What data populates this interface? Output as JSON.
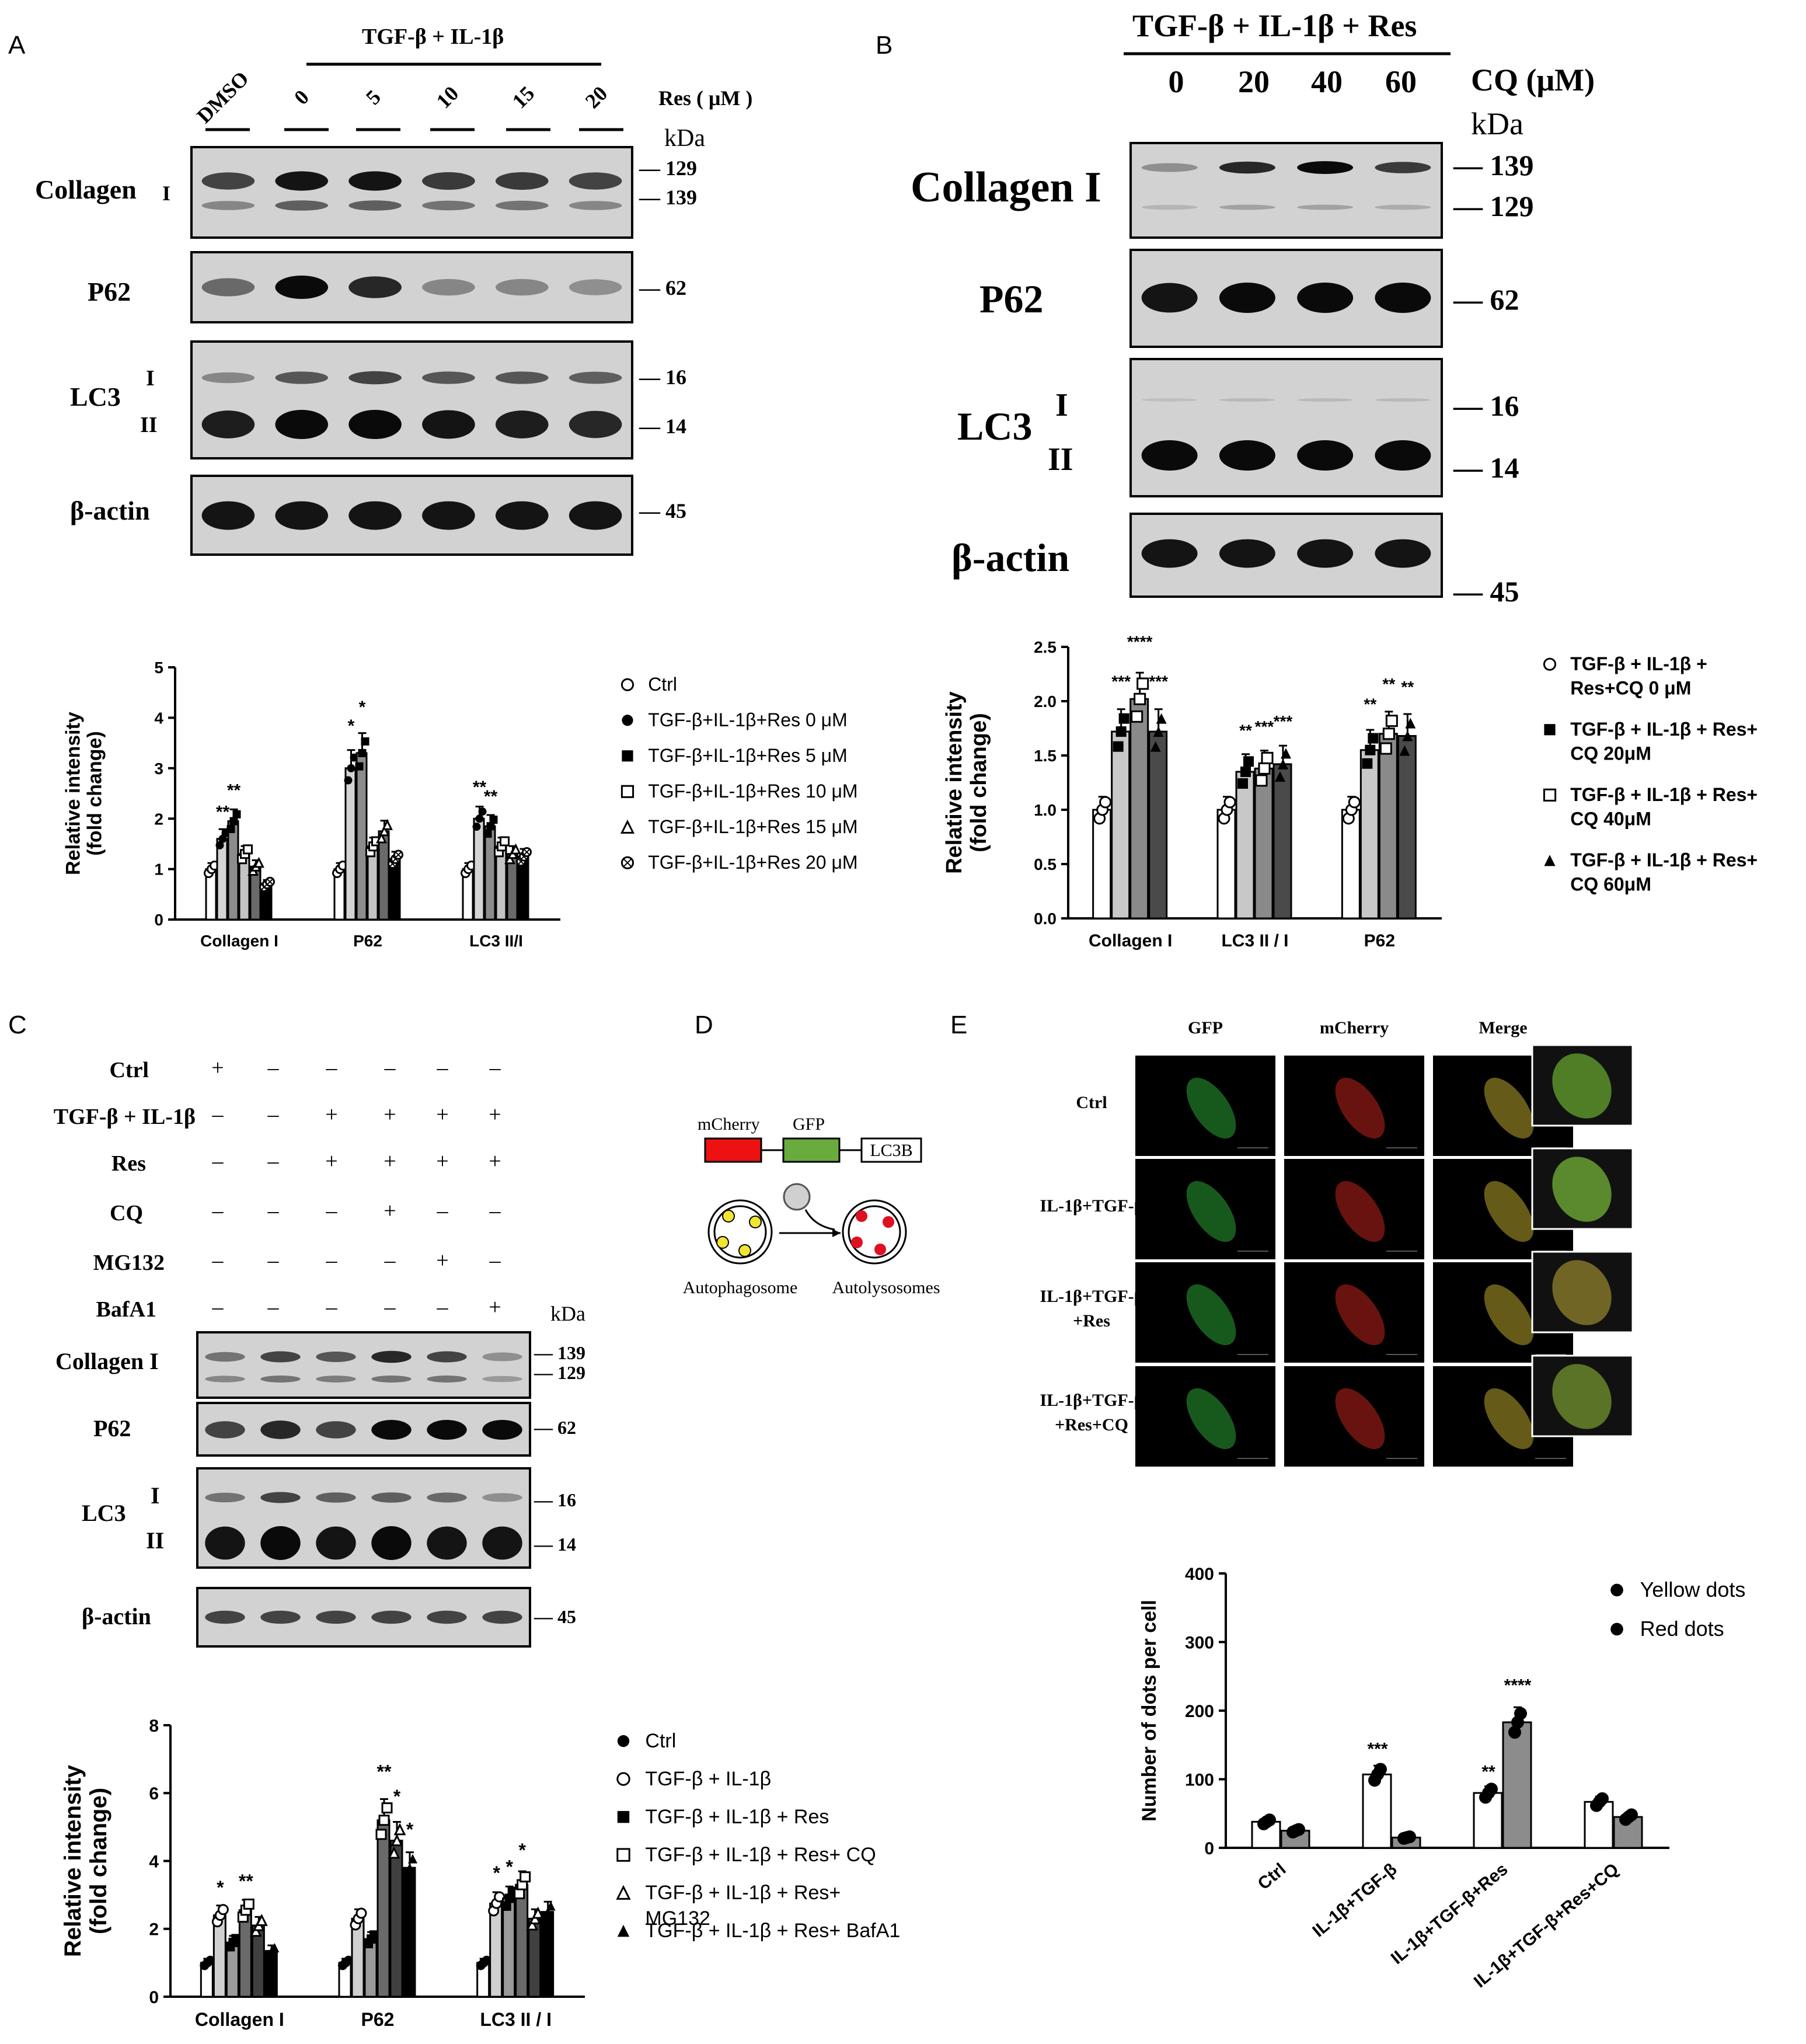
{
  "panelA": {
    "letter": "A",
    "header_treatment": "TGF-β + IL-1β",
    "lanes": [
      "DMSO",
      "0",
      "5",
      "10",
      "15",
      "20"
    ],
    "res_label": "Res ( μM )",
    "kda_label": "kDa",
    "blots": [
      {
        "label": "Collagen",
        "sublabel": "I",
        "markers": [
          "— 129",
          "— 139"
        ]
      },
      {
        "label": "P62",
        "markers": [
          "— 62"
        ]
      },
      {
        "label": "LC3",
        "sublabels": [
          "I",
          "II"
        ],
        "markers": [
          "— 16",
          "— 14"
        ]
      },
      {
        "label": "β-actin",
        "markers": [
          "— 45"
        ]
      }
    ]
  },
  "panelB": {
    "letter": "B",
    "header_treatment": "TGF-β + IL-1β + Res",
    "lanes": [
      "0",
      "20",
      "40",
      "60"
    ],
    "cq_label": "CQ (μM)",
    "kda_label": "kDa",
    "blots": [
      {
        "label": "Collagen I",
        "markers": [
          "— 139",
          "— 129"
        ]
      },
      {
        "label": "P62",
        "markers": [
          "— 62"
        ]
      },
      {
        "label": "LC3",
        "sublabels": [
          "I",
          "II"
        ],
        "markers": [
          "— 16",
          "— 14"
        ]
      },
      {
        "label": "β-actin",
        "markers": [
          "— 45"
        ]
      }
    ]
  },
  "panelC": {
    "letter": "C",
    "rows": [
      {
        "label": "Ctrl",
        "signs": [
          "+",
          "–",
          "–",
          "–",
          "–",
          "–"
        ]
      },
      {
        "label": "TGF-β + IL-1β",
        "signs": [
          "–",
          "–",
          "+",
          "+",
          "+",
          "+"
        ]
      },
      {
        "label": "Res",
        "signs": [
          "–",
          "–",
          "+",
          "+",
          "+",
          "+"
        ]
      },
      {
        "label": "CQ",
        "signs": [
          "–",
          "–",
          "–",
          "+",
          "–",
          "–"
        ]
      },
      {
        "label": "MG132",
        "signs": [
          "–",
          "–",
          "–",
          "–",
          "+",
          "–"
        ]
      },
      {
        "label": "BafA1",
        "signs": [
          "–",
          "–",
          "–",
          "–",
          "–",
          "+"
        ]
      }
    ],
    "kda_label": "kDa",
    "blots": [
      {
        "label": "Collagen I",
        "markers": [
          "— 139",
          "— 129"
        ]
      },
      {
        "label": "P62",
        "markers": [
          "— 62"
        ]
      },
      {
        "label": "LC3",
        "sublabels": [
          "I",
          "II"
        ],
        "markers": [
          "— 16",
          "— 14"
        ]
      },
      {
        "label": "β-actin",
        "markers": [
          "— 45"
        ]
      }
    ]
  },
  "panelD": {
    "letter": "D",
    "construct": [
      "mCherry",
      "GFP",
      "LC3B"
    ],
    "left_label": "Autophagosome",
    "right_label": "Autolysosomes",
    "colors": {
      "mcherry": "#ee1111",
      "gfp": "#6aab3e",
      "yellow": "#f0e632",
      "red": "#e01020"
    }
  },
  "panelE": {
    "letter": "E",
    "columns": [
      "GFP",
      "mCherry",
      "Merge"
    ],
    "rows": [
      "Ctrl",
      "IL-1β+TGF-β",
      "IL-1β+TGF-β\n+Res",
      "IL-1β+TGF-β\n+Res+CQ"
    ]
  },
  "chart_data": [
    {
      "id": "A",
      "type": "bar",
      "ylabel": "Relative intensity\n(fold change)",
      "ylim": [
        0,
        5
      ],
      "yticks": [
        0,
        1,
        2,
        3,
        4,
        5
      ],
      "categories": [
        "Collagen I",
        "P62",
        "LC3 II/I"
      ],
      "series": [
        {
          "name": "Ctrl",
          "marker": "circle-open",
          "fill": "#ffffff",
          "values": [
            1.0,
            1.0,
            1.0
          ]
        },
        {
          "name": "TGF-β+IL-1β+Res 0 μM",
          "marker": "circle",
          "fill": "#d4d4d4",
          "values": [
            1.6,
            3.0,
            2.0
          ]
        },
        {
          "name": "TGF-β+IL-1β+Res 5 μM",
          "marker": "square",
          "fill": "#8c8c8c",
          "values": [
            1.95,
            3.3,
            1.85
          ]
        },
        {
          "name": "TGF-β+IL-1β+Res 10 μM",
          "marker": "square-open",
          "fill": "#c4c4c4",
          "values": [
            1.3,
            1.45,
            1.45
          ]
        },
        {
          "name": "TGF-β+IL-1β+Res 15 μM",
          "marker": "triangle-open",
          "fill": "#6a6a6a",
          "values": [
            1.05,
            1.75,
            1.3
          ]
        },
        {
          "name": "TGF-β+IL-1β+Res 20 μM",
          "marker": "circle-x",
          "fill": "#000000",
          "values": [
            0.7,
            1.2,
            1.25
          ]
        }
      ],
      "significance": [
        {
          "category": "Collagen I",
          "series": 1,
          "label": "**"
        },
        {
          "category": "Collagen I",
          "series": 2,
          "label": "**"
        },
        {
          "category": "P62",
          "series": 1,
          "label": "*"
        },
        {
          "category": "P62",
          "series": 2,
          "label": "*"
        },
        {
          "category": "LC3 II/I",
          "series": 1,
          "label": "**"
        },
        {
          "category": "LC3 II/I",
          "series": 2,
          "label": "**"
        }
      ]
    },
    {
      "id": "B",
      "type": "bar",
      "ylabel": "Relative intensity\n(fold change)",
      "ylim": [
        0,
        2.5
      ],
      "yticks": [
        0.0,
        0.5,
        1.0,
        1.5,
        2.0,
        2.5
      ],
      "categories": [
        "Collagen I",
        "LC3 II / I",
        "P62"
      ],
      "series": [
        {
          "name": "TGF-β + IL-1β +\nRes+CQ 0 μM",
          "marker": "circle-open",
          "fill": "#ffffff",
          "values": [
            1.0,
            1.0,
            1.0
          ]
        },
        {
          "name": "TGF-β + IL-1β + Res+\nCQ 20μM",
          "marker": "square",
          "fill": "#c8c8c8",
          "values": [
            1.72,
            1.35,
            1.55
          ]
        },
        {
          "name": "TGF-β + IL-1β + Res+\nCQ 40μM",
          "marker": "square-open",
          "fill": "#8a8a8a",
          "values": [
            2.02,
            1.38,
            1.7
          ]
        },
        {
          "name": "TGF-β + IL-1β + Res+\nCQ 60μM",
          "marker": "triangle",
          "fill": "#4a4a4a",
          "values": [
            1.72,
            1.42,
            1.68
          ]
        }
      ],
      "significance": [
        {
          "category": "Collagen I",
          "series": 1,
          "label": "***"
        },
        {
          "category": "Collagen I",
          "series": 2,
          "label": "****"
        },
        {
          "category": "Collagen I",
          "series": 3,
          "label": "***"
        },
        {
          "category": "LC3 II / I",
          "series": 1,
          "label": "**"
        },
        {
          "category": "LC3 II / I",
          "series": 2,
          "label": "***"
        },
        {
          "category": "LC3 II / I",
          "series": 3,
          "label": "***"
        },
        {
          "category": "P62",
          "series": 1,
          "label": "**"
        },
        {
          "category": "P62",
          "series": 2,
          "label": "**"
        },
        {
          "category": "P62",
          "series": 3,
          "label": "**"
        }
      ]
    },
    {
      "id": "C",
      "type": "bar",
      "ylabel": "Relative intensity\n(fold change)",
      "ylim": [
        0,
        8
      ],
      "yticks": [
        0,
        2,
        4,
        6,
        8
      ],
      "categories": [
        "Collagen I",
        "P62",
        "LC3 II / I"
      ],
      "series": [
        {
          "name": "Ctrl",
          "marker": "circle",
          "fill": "#ffffff",
          "values": [
            1.0,
            1.0,
            1.0
          ]
        },
        {
          "name": "TGF-β + IL-1β",
          "marker": "circle-open",
          "fill": "#d0d0d0",
          "values": [
            2.4,
            2.3,
            2.75
          ]
        },
        {
          "name": "TGF-β + IL-1β + Res",
          "marker": "square",
          "fill": "#9a9a9a",
          "values": [
            1.6,
            1.7,
            2.9
          ]
        },
        {
          "name": "TGF-β + IL-1β + Res+ CQ",
          "marker": "square-open",
          "fill": "#6a6a6a",
          "values": [
            2.55,
            5.2,
            3.3
          ]
        },
        {
          "name": "TGF-β + IL-1β + Res+\nMG132",
          "marker": "triangle-open",
          "fill": "#404040",
          "values": [
            2.1,
            4.6,
            2.3
          ]
        },
        {
          "name": "TGF-β + IL-1β + Res+ BafA1",
          "marker": "triangle",
          "fill": "#000000",
          "values": [
            1.35,
            3.8,
            2.5
          ]
        }
      ],
      "significance": [
        {
          "category": "Collagen I",
          "series": 1,
          "label": "*"
        },
        {
          "category": "Collagen I",
          "series": 3,
          "label": "**"
        },
        {
          "category": "P62",
          "series": 3,
          "label": "**"
        },
        {
          "category": "P62",
          "series": 4,
          "label": "*"
        },
        {
          "category": "P62",
          "series": 5,
          "label": "*"
        },
        {
          "category": "LC3 II / I",
          "series": 1,
          "label": "*"
        },
        {
          "category": "LC3 II / I",
          "series": 2,
          "label": "*"
        },
        {
          "category": "LC3 II / I",
          "series": 3,
          "label": "*"
        }
      ]
    },
    {
      "id": "E",
      "type": "bar",
      "ylabel": "Number of dots per cell",
      "ylim": [
        0,
        400
      ],
      "yticks": [
        0,
        100,
        200,
        300,
        400
      ],
      "categories": [
        "Ctrl",
        "IL-1β+TGF-β",
        "IL-1β+TGF-β+Res",
        "IL-1β+TGF-β+Res+CQ"
      ],
      "series": [
        {
          "name": "Yellow dots",
          "marker": "circle",
          "fill": "#ffffff",
          "values": [
            38,
            107,
            80,
            67
          ]
        },
        {
          "name": "Red dots",
          "marker": "circle",
          "fill": "#8c8c8c",
          "values": [
            25,
            15,
            183,
            45
          ]
        }
      ],
      "significance": [
        {
          "category": "IL-1β+TGF-β",
          "series": 0,
          "label": "***"
        },
        {
          "category": "IL-1β+TGF-β+Res",
          "series": 0,
          "label": "**"
        },
        {
          "category": "IL-1β+TGF-β+Res",
          "series": 1,
          "label": "****"
        }
      ]
    }
  ]
}
